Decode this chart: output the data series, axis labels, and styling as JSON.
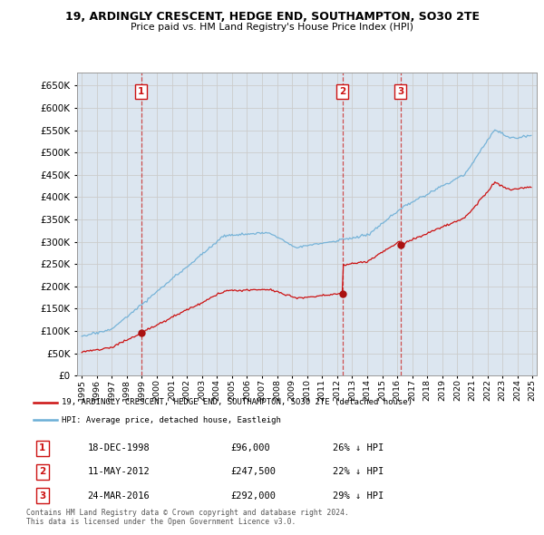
{
  "title": "19, ARDINGLY CRESCENT, HEDGE END, SOUTHAMPTON, SO30 2TE",
  "subtitle": "Price paid vs. HM Land Registry's House Price Index (HPI)",
  "background_color": "#ffffff",
  "grid_color": "#cccccc",
  "plot_bg_color": "#dce6f0",
  "red_line_label": "19, ARDINGLY CRESCENT, HEDGE END, SOUTHAMPTON, SO30 2TE (detached house)",
  "blue_line_label": "HPI: Average price, detached house, Eastleigh",
  "transactions": [
    {
      "label": "1",
      "date": "18-DEC-1998",
      "price": 96000,
      "note": "26% ↓ HPI",
      "x_year": 1998.958
    },
    {
      "label": "2",
      "date": "11-MAY-2012",
      "price": 247500,
      "note": "22% ↓ HPI",
      "x_year": 2012.36
    },
    {
      "label": "3",
      "date": "24-MAR-2016",
      "price": 292000,
      "note": "29% ↓ HPI",
      "x_year": 2016.23
    }
  ],
  "footer": "Contains HM Land Registry data © Crown copyright and database right 2024.\nThis data is licensed under the Open Government Licence v3.0.",
  "ylim": [
    0,
    680000
  ],
  "yticks": [
    0,
    50000,
    100000,
    150000,
    200000,
    250000,
    300000,
    350000,
    400000,
    450000,
    500000,
    550000,
    600000,
    650000
  ],
  "xlim_start": 1994.7,
  "xlim_end": 2025.3,
  "xtick_years": [
    1995,
    1996,
    1997,
    1998,
    1999,
    2000,
    2001,
    2002,
    2003,
    2004,
    2005,
    2006,
    2007,
    2008,
    2009,
    2010,
    2011,
    2012,
    2013,
    2014,
    2015,
    2016,
    2017,
    2018,
    2019,
    2020,
    2021,
    2022,
    2023,
    2024,
    2025
  ]
}
